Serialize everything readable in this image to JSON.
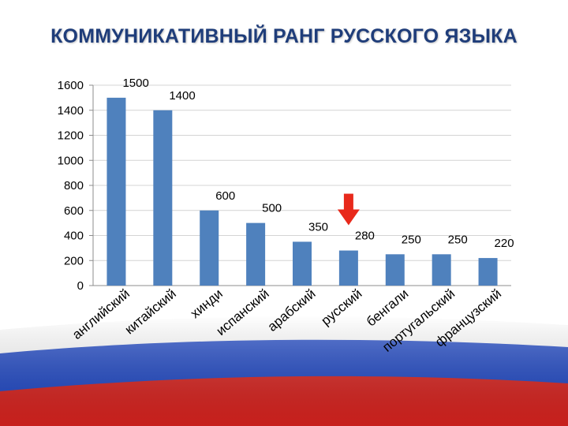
{
  "slide": {
    "title": "КОММУНИКАТИВНЫЙ РАНГ РУССКОГО ЯЗЫКА"
  },
  "colors": {
    "bar": "#4f81bd",
    "title": "#1f3d7a",
    "marker_arrow": "#e8291b",
    "flag_white": "#ffffff",
    "flag_blue": "#1f48c6",
    "flag_red": "#d9231f"
  },
  "chart_data": {
    "type": "bar",
    "title": "",
    "xlabel": "",
    "ylabel": "",
    "ylim": [
      0,
      1600
    ],
    "yticks": [
      0,
      200,
      400,
      600,
      800,
      1000,
      1200,
      1400,
      1600
    ],
    "grid": true,
    "legend": "none",
    "categories": [
      "английский",
      "китайский",
      "хинди",
      "испанский",
      "арабский",
      "русский",
      "бенгали",
      "португальский",
      "французский"
    ],
    "values": [
      1500,
      1400,
      600,
      500,
      350,
      280,
      250,
      250,
      220
    ],
    "data_labels": [
      "1500",
      "1400",
      "600",
      "500",
      "350",
      "280",
      "250",
      "250",
      "220"
    ],
    "highlighted_category": "русский",
    "highlight_marker": "red-down-arrow"
  }
}
